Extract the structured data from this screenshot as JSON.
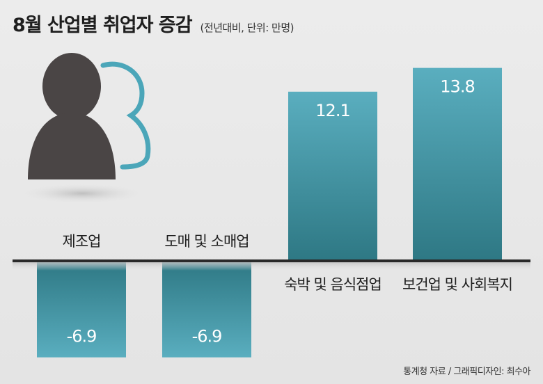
{
  "chart_data": {
    "type": "bar",
    "title": "8월 산업별 취업자 증감",
    "subtitle": "(전년대비, 단위: 만명)",
    "categories": [
      "제조업",
      "도매 및 소매업",
      "숙박 및 음식점업",
      "보건업 및 사회복지"
    ],
    "values": [
      -6.9,
      -6.9,
      12.1,
      13.8
    ],
    "value_labels": [
      "-6.9",
      "-6.9",
      "12.1",
      "13.8"
    ],
    "ylim": [
      -9.5,
      16
    ],
    "grid": false,
    "legend": "none"
  },
  "colors": {
    "bar_top": "#58abbd",
    "bar_bottom": "#2f7a85",
    "person_front": "#4a4545",
    "person_outline": "#4ba6b9"
  },
  "icons": [
    "person-icon"
  ],
  "source": "통계청 자료 / 그래픽디자인: 최수아"
}
